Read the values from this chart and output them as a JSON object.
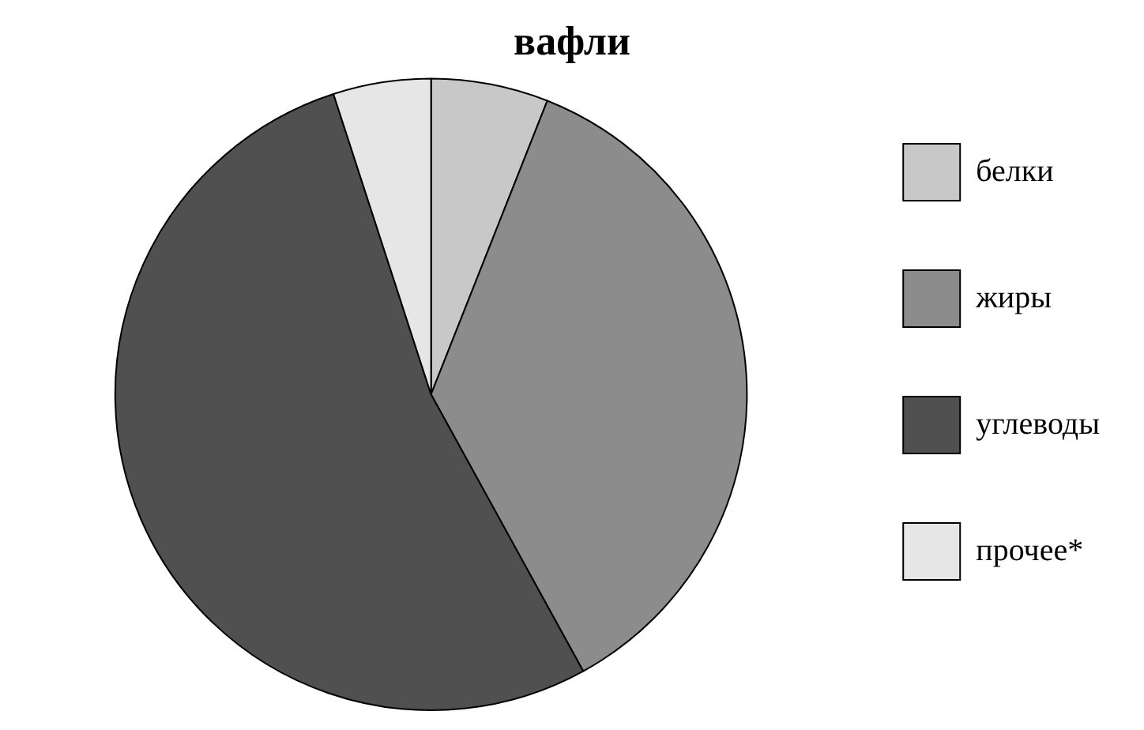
{
  "chart_data": {
    "type": "pie",
    "title": "вафли",
    "categories": [
      "белки",
      "жиры",
      "углеводы",
      "прочее*"
    ],
    "values": [
      6,
      36,
      53,
      5
    ],
    "colors": [
      "#c8c8c8",
      "#8c8c8c",
      "#505050",
      "#e6e6e6"
    ],
    "legend": "right"
  }
}
